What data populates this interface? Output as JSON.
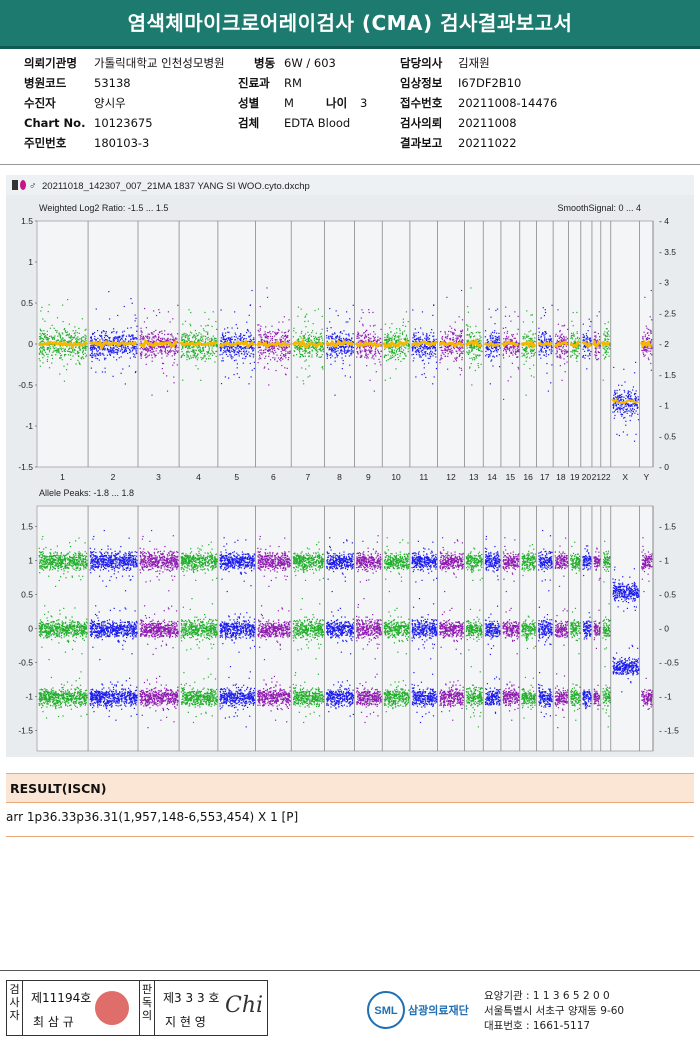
{
  "report_title": "염색체마이크로어레이검사 (CMA) 검사결과보고서",
  "info": {
    "institution_label": "의뢰기관명",
    "institution": "가톨릭대학교 인천성모병원",
    "ward_label": "병동",
    "ward": "6W / 603",
    "doctor_label": "담당의사",
    "doctor": "김재원",
    "hospital_code_label": "병원코드",
    "hospital_code": "53138",
    "dept_label": "진료과",
    "dept": "RM",
    "clinical_label": "임상정보",
    "clinical": "I67DF2B10",
    "patient_label": "수진자",
    "patient": "양시우",
    "sex_label": "성별",
    "sex": "M",
    "age_label": "나이",
    "age": "3",
    "reception_label": "접수번호",
    "reception": "20211008-14476",
    "chart_label": "Chart No.",
    "chart_no": "10123675",
    "specimen_label": "검체",
    "specimen": "EDTA Blood",
    "request_label": "검사의뢰",
    "request_date": "20211008",
    "rrn_label": "주민번호",
    "rrn": "180103-3",
    "report_label": "결과보고",
    "report_date": "20211022"
  },
  "chart_header": "20211018_142307_007_21MA 1837 YANG SI WOO.cyto.dxchp",
  "chart_data": [
    {
      "type": "scatter",
      "title": "Weighted Log2 Ratio: -1.5 ... 1.5",
      "right_title": "SmoothSignal: 0 ... 4",
      "ylim": [
        -1.5,
        1.5
      ],
      "y_ticks": [
        "1.5",
        "1",
        "0.5",
        "0",
        "-0.5",
        "-1",
        "-1.5"
      ],
      "right_ylim": [
        0,
        4
      ],
      "right_ticks": [
        "4",
        "3.5",
        "3",
        "2.5",
        "2",
        "1.5",
        "1",
        "0.5",
        "0"
      ],
      "categories": [
        "1",
        "2",
        "3",
        "4",
        "5",
        "6",
        "7",
        "8",
        "9",
        "10",
        "11",
        "12",
        "13",
        "14",
        "15",
        "16",
        "17",
        "18",
        "19",
        "20",
        "21",
        "22",
        "X",
        "Y"
      ],
      "series": [
        {
          "name": "",
          "values": [
            0,
            0,
            0,
            0,
            0,
            0,
            0,
            0,
            0,
            0,
            0,
            0,
            0,
            0,
            0,
            0,
            0,
            0,
            0,
            0,
            0,
            0,
            -0.7,
            0
          ]
        }
      ]
    },
    {
      "type": "scatter",
      "title": "Allele Peaks: -1.8 ... 1.8",
      "ylim": [
        -1.8,
        1.8
      ],
      "y_ticks": [
        "1.5",
        "1",
        "0.5",
        "0",
        "-0.5",
        "-1",
        "-1.5"
      ],
      "right_ticks": [
        "1.5",
        "1",
        "0.5",
        "0",
        "-0.5",
        "-1",
        "-1.5"
      ],
      "categories": [
        "1",
        "2",
        "3",
        "4",
        "5",
        "6",
        "7",
        "8",
        "9",
        "10",
        "11",
        "12",
        "13",
        "14",
        "15",
        "16",
        "17",
        "18",
        "19",
        "20",
        "21",
        "22",
        "X",
        "Y"
      ],
      "bands": [
        1,
        0,
        -1
      ]
    }
  ],
  "colors": {
    "c1": "#1fae29",
    "c2": "#1a1aee",
    "c3": "#8e1ab0",
    "smooth": "#f5b800",
    "accent": "#1c7a6e"
  },
  "result": {
    "heading": "RESULT(ISCN)",
    "text": "arr 1p36.33p36.31(1,957,148-6,553,454) X 1 [P]"
  },
  "footer": {
    "exam_label": "검사자",
    "exam_no": "제11194호",
    "exam_name": "최 삼 규",
    "confirm_label": "판독의",
    "confirm_no": "제3 3 3 호",
    "confirm_name": "지 현 영",
    "signature": "Chi",
    "lab_logo": "SML",
    "lab_name": "삼광의료재단",
    "lab_code": "요양기관 : 1 1 3 6 5 2 0 0",
    "lab_address": "서울특별시 서초구 양재동 9-60",
    "lab_phone": "대표번호 : 1661-5117"
  }
}
